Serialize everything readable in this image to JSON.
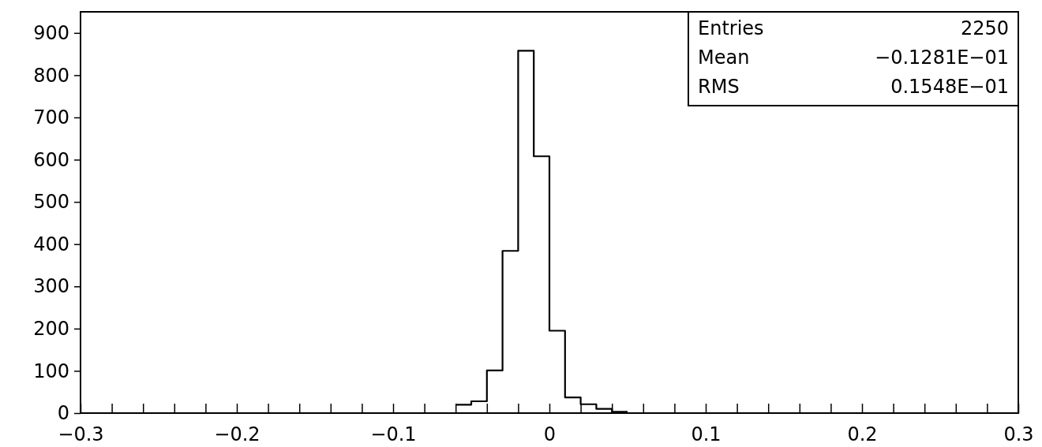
{
  "chart_data": {
    "type": "histogram",
    "bins": [
      -0.06,
      -0.05,
      -0.04,
      -0.03,
      -0.02,
      -0.01,
      0,
      0.01,
      0.02,
      0.03,
      0.04,
      0.05
    ],
    "values": [
      20,
      28,
      101,
      384,
      858,
      608,
      195,
      37,
      21,
      10,
      3
    ],
    "color": "#000000",
    "xlim": [
      -0.3,
      0.3
    ],
    "xticks": [
      {
        "value": -0.3,
        "label": "−0.3"
      },
      {
        "value": -0.28,
        "label": null
      },
      {
        "value": -0.26,
        "label": null
      },
      {
        "value": -0.24,
        "label": null
      },
      {
        "value": -0.22,
        "label": null
      },
      {
        "value": -0.2,
        "label": "−0.2"
      },
      {
        "value": -0.18,
        "label": null
      },
      {
        "value": -0.16,
        "label": null
      },
      {
        "value": -0.14,
        "label": null
      },
      {
        "value": -0.12,
        "label": null
      },
      {
        "value": -0.1,
        "label": "−0.1"
      },
      {
        "value": -0.08,
        "label": null
      },
      {
        "value": -0.06,
        "label": null
      },
      {
        "value": -0.04,
        "label": null
      },
      {
        "value": -0.02,
        "label": null
      },
      0,
      {
        "value": 0.02,
        "label": null
      },
      {
        "value": 0.04,
        "label": null
      },
      {
        "value": 0.06,
        "label": null
      },
      {
        "value": 0.08,
        "label": null
      },
      0.1,
      {
        "value": 0.12,
        "label": null
      },
      {
        "value": 0.14,
        "label": null
      },
      {
        "value": 0.16,
        "label": null
      },
      {
        "value": 0.18,
        "label": null
      },
      0.2,
      {
        "value": 0.22,
        "label": null
      },
      {
        "value": 0.24,
        "label": null
      },
      {
        "value": 0.26,
        "label": null
      },
      {
        "value": 0.28,
        "label": null
      },
      0.3
    ],
    "ylim": [
      0,
      950
    ],
    "yticks": [
      0,
      100,
      200,
      300,
      400,
      500,
      600,
      700,
      800,
      900
    ],
    "annotations": [
      "Entries",
      "2250",
      "Mean",
      "−0.1281E−01",
      "RMS",
      "0.1548E−01"
    ]
  }
}
